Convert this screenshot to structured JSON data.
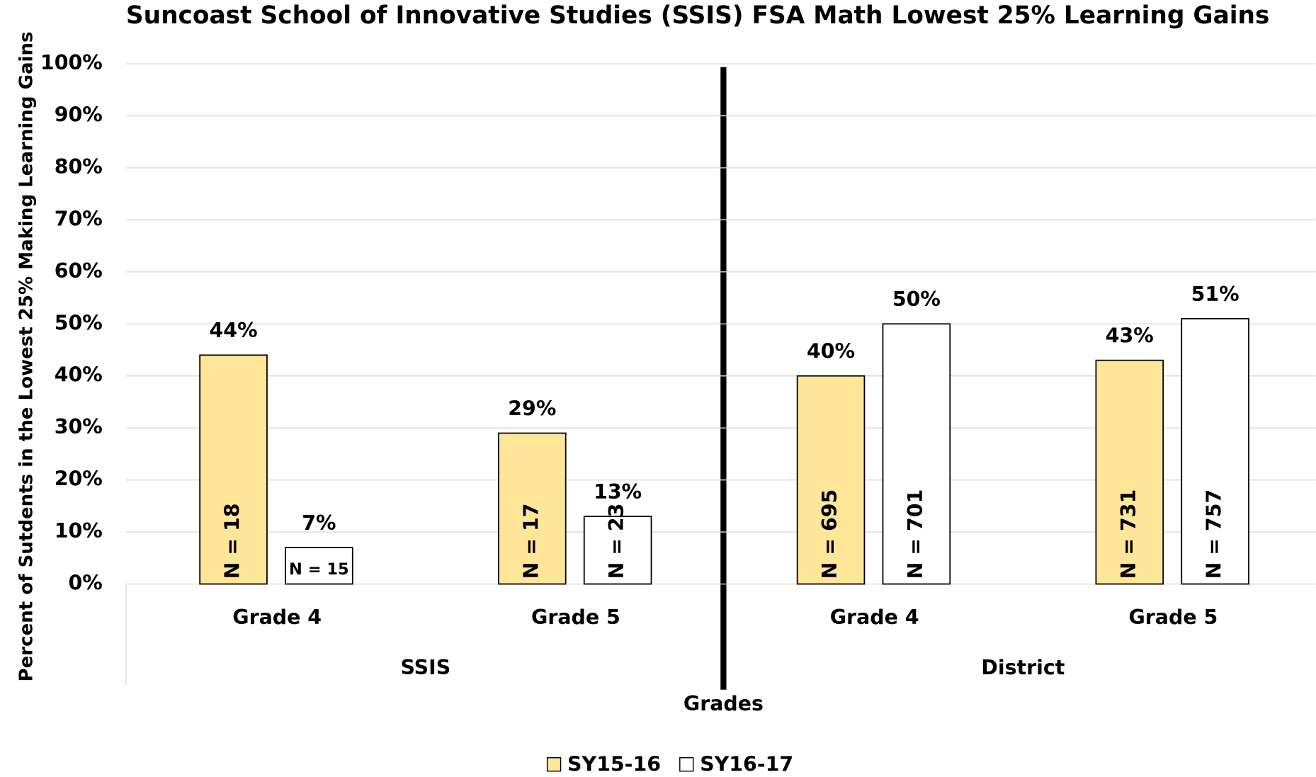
{
  "chart_data": {
    "type": "bar",
    "title": "Suncoast School of Innovative Studies (SSIS) FSA Math Lowest 25% Learning Gains",
    "y_label": "Percent of Sutdents in the Lowest 25% Making Learning Gains",
    "x_label": "Grades",
    "categories": [
      "Grade 4",
      "Grade 5",
      "Grade 4",
      "Grade 5"
    ],
    "groups": [
      "SSIS",
      "District"
    ],
    "series": [
      {
        "name": "SY15-16",
        "color": "#ffe699",
        "values": [
          44,
          29,
          40,
          43
        ],
        "value_labels": [
          "44%",
          "29%",
          "40%",
          "43%"
        ],
        "n_labels": [
          "N = 18",
          "N = 17",
          "N = 695",
          "N = 731"
        ]
      },
      {
        "name": "SY16-17",
        "color": "#ffffff",
        "values": [
          7,
          13,
          50,
          51
        ],
        "value_labels": [
          "7%",
          "13%",
          "50%",
          "51%"
        ],
        "n_labels": [
          "N = 15",
          "N = 23",
          "N = 701",
          "N = 757"
        ]
      }
    ],
    "ylim": [
      0,
      100
    ],
    "yticks": [
      {
        "value": 0,
        "label": "0%"
      },
      {
        "value": 10,
        "label": "10%"
      },
      {
        "value": 20,
        "label": "20%"
      },
      {
        "value": 30,
        "label": "30%"
      },
      {
        "value": 40,
        "label": "40%"
      },
      {
        "value": 50,
        "label": "50%"
      },
      {
        "value": 60,
        "label": "60%"
      },
      {
        "value": 70,
        "label": "70%"
      },
      {
        "value": 80,
        "label": "80%"
      },
      {
        "value": 90,
        "label": "90%"
      },
      {
        "value": 100,
        "label": "100%"
      }
    ],
    "grid": true,
    "legend": "bottom"
  }
}
